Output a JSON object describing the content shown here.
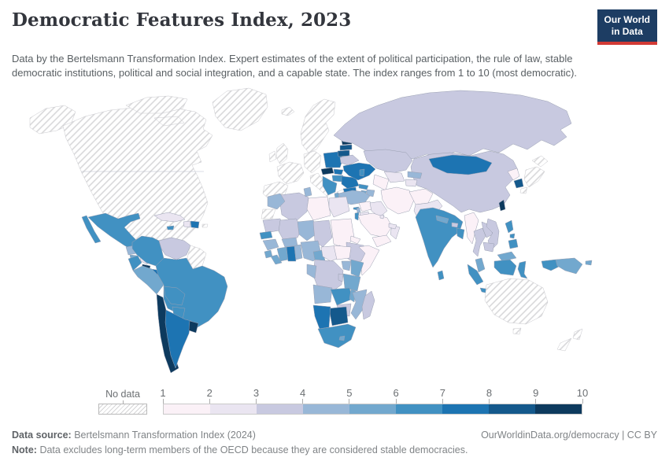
{
  "header": {
    "title": "Democratic Features Index, 2023",
    "subtitle": "Data by the Bertelsmann Transformation Index. Expert estimates of the extent of political participation, the rule of law, stable democratic institutions, political and social integration, and a capable state. The index ranges from 1 to 10 (most democratic).",
    "logo": {
      "line1": "Our World",
      "line2": "in Data",
      "bg_color": "#1d3d63",
      "accent_color": "#d23a35"
    }
  },
  "footer": {
    "source_label": "Data source:",
    "source": "Bertelsmann Transformation Index (2024)",
    "link": "OurWorldinData.org/democracy | CC BY",
    "note_label": "Note:",
    "note": "Data excludes long-term members of the OECD because they are considered stable democracies."
  },
  "chart_data": {
    "type": "choropleth-map",
    "title": "Democratic Features Index, 2023",
    "index_range": [
      1,
      10
    ],
    "legend": {
      "no_data_label": "No data",
      "ticks": [
        "1",
        "2",
        "3",
        "4",
        "5",
        "6",
        "7",
        "8",
        "9",
        "10"
      ],
      "bins": [
        {
          "range": "1-2",
          "color": "#fbf1f7"
        },
        {
          "range": "2-3",
          "color": "#eae5f1"
        },
        {
          "range": "3-4",
          "color": "#c8c9e0"
        },
        {
          "range": "4-5",
          "color": "#98b7d7"
        },
        {
          "range": "5-6",
          "color": "#72a8ce"
        },
        {
          "range": "6-7",
          "color": "#4191c2"
        },
        {
          "range": "7-8",
          "color": "#1d74b2"
        },
        {
          "range": "8-9",
          "color": "#14598c"
        },
        {
          "range": "9-10",
          "color": "#0d3a5e"
        }
      ],
      "no_data_style": {
        "fill": "#ffffff",
        "hatch_color": "#d6d6d8",
        "border": "#c9c9ce"
      }
    },
    "regions": [
      {
        "id": "alaska",
        "label": "United States (Alaska)",
        "bin": "no-data"
      },
      {
        "id": "canada-usa",
        "label": "Canada and United States",
        "bin": "no-data"
      },
      {
        "id": "arctic-islands",
        "label": "Canadian Arctic Islands",
        "bin": "no-data"
      },
      {
        "id": "greenland",
        "label": "Greenland",
        "bin": "no-data"
      },
      {
        "id": "mexico",
        "label": "Mexico",
        "bin": 6
      },
      {
        "id": "guatemala",
        "label": "Guatemala",
        "bin": 4
      },
      {
        "id": "honduras",
        "label": "Honduras",
        "bin": 3
      },
      {
        "id": "el-salvador",
        "label": "El Salvador",
        "bin": 5
      },
      {
        "id": "nicaragua",
        "label": "Nicaragua",
        "bin": 2
      },
      {
        "id": "costa-rica",
        "label": "Costa Rica",
        "bin": 9
      },
      {
        "id": "panama",
        "label": "Panama",
        "bin": 7
      },
      {
        "id": "cuba",
        "label": "Cuba",
        "bin": 2
      },
      {
        "id": "jamaica",
        "label": "Jamaica",
        "bin": 6
      },
      {
        "id": "haiti",
        "label": "Haiti",
        "bin": 2
      },
      {
        "id": "dominican-republic",
        "label": "Dominican Republic",
        "bin": 7
      },
      {
        "id": "puerto-rico",
        "label": "Puerto Rico",
        "bin": "no-data"
      },
      {
        "id": "trinidad",
        "label": "Trinidad and Tobago",
        "bin": 6
      },
      {
        "id": "colombia",
        "label": "Colombia",
        "bin": 6
      },
      {
        "id": "venezuela",
        "label": "Venezuela",
        "bin": 3
      },
      {
        "id": "guyanas",
        "label": "Guyana and Suriname",
        "bin": "no-data"
      },
      {
        "id": "ecuador",
        "label": "Ecuador",
        "bin": 6
      },
      {
        "id": "peru",
        "label": "Peru",
        "bin": 5
      },
      {
        "id": "brazil",
        "label": "Brazil",
        "bin": 6
      },
      {
        "id": "bolivia",
        "label": "Bolivia",
        "bin": 6
      },
      {
        "id": "paraguay",
        "label": "Paraguay",
        "bin": 6
      },
      {
        "id": "chile",
        "label": "Chile",
        "bin": 9
      },
      {
        "id": "argentina",
        "label": "Argentina",
        "bin": 7
      },
      {
        "id": "uruguay",
        "label": "Uruguay",
        "bin": 9
      },
      {
        "id": "iceland",
        "label": "Iceland",
        "bin": "no-data"
      },
      {
        "id": "uk",
        "label": "United Kingdom",
        "bin": "no-data"
      },
      {
        "id": "ireland",
        "label": "Ireland",
        "bin": "no-data"
      },
      {
        "id": "scandinavia",
        "label": "Norway, Sweden and Finland",
        "bin": "no-data"
      },
      {
        "id": "denmark",
        "label": "Denmark",
        "bin": "no-data"
      },
      {
        "id": "france",
        "label": "France",
        "bin": "no-data"
      },
      {
        "id": "iberia",
        "label": "Spain and Portugal",
        "bin": "no-data"
      },
      {
        "id": "central-europe",
        "label": "Germany, Austria and Switzerland",
        "bin": "no-data"
      },
      {
        "id": "italy",
        "label": "Italy",
        "bin": "no-data"
      },
      {
        "id": "greece",
        "label": "Greece",
        "bin": "no-data"
      },
      {
        "id": "estonia",
        "label": "Estonia",
        "bin": 9
      },
      {
        "id": "latvia",
        "label": "Latvia",
        "bin": 8
      },
      {
        "id": "lithuania",
        "label": "Lithuania",
        "bin": 8
      },
      {
        "id": "poland",
        "label": "Poland",
        "bin": 7
      },
      {
        "id": "czechia",
        "label": "Czechia",
        "bin": 9
      },
      {
        "id": "slovakia",
        "label": "Slovakia",
        "bin": 7
      },
      {
        "id": "hungary",
        "label": "Hungary",
        "bin": 6
      },
      {
        "id": "western-balkans",
        "label": "Western Balkans",
        "bin": 6
      },
      {
        "id": "albania",
        "label": "Albania",
        "bin": 5
      },
      {
        "id": "romania",
        "label": "Romania",
        "bin": 7
      },
      {
        "id": "bulgaria",
        "label": "Bulgaria",
        "bin": 7
      },
      {
        "id": "belarus",
        "label": "Belarus",
        "bin": 3
      },
      {
        "id": "ukraine",
        "label": "Ukraine",
        "bin": 7
      },
      {
        "id": "moldova",
        "label": "Moldova",
        "bin": 6
      },
      {
        "id": "russia",
        "label": "Russia",
        "bin": 3
      },
      {
        "id": "kazakhstan",
        "label": "Kazakhstan",
        "bin": 3
      },
      {
        "id": "china",
        "label": "China",
        "bin": 3
      },
      {
        "id": "mongolia",
        "label": "Mongolia",
        "bin": 7
      },
      {
        "id": "uzbekistan",
        "label": "Uzbekistan",
        "bin": 2
      },
      {
        "id": "turkmenistan",
        "label": "Turkmenistan",
        "bin": 1
      },
      {
        "id": "kyrgyzstan",
        "label": "Kyrgyzstan",
        "bin": 4
      },
      {
        "id": "tajikistan",
        "label": "Tajikistan",
        "bin": 2
      },
      {
        "id": "georgia",
        "label": "Georgia",
        "bin": 6
      },
      {
        "id": "armenia",
        "label": "Armenia",
        "bin": 5
      },
      {
        "id": "azerbaijan",
        "label": "Azerbaijan",
        "bin": 4
      },
      {
        "id": "turkey",
        "label": "Turkey",
        "bin": 4
      },
      {
        "id": "cyprus",
        "label": "Cyprus",
        "bin": 6
      },
      {
        "id": "syria",
        "label": "Syria",
        "bin": 1
      },
      {
        "id": "lebanon",
        "label": "Lebanon",
        "bin": 4
      },
      {
        "id": "israel",
        "label": "Israel",
        "bin": 6
      },
      {
        "id": "jordan",
        "label": "Jordan",
        "bin": 2
      },
      {
        "id": "iraq",
        "label": "Iraq",
        "bin": 2
      },
      {
        "id": "iran",
        "label": "Iran",
        "bin": 1
      },
      {
        "id": "saudi-arabia",
        "label": "Saudi Arabia",
        "bin": 1
      },
      {
        "id": "yemen",
        "label": "Yemen",
        "bin": 1
      },
      {
        "id": "oman",
        "label": "Oman",
        "bin": 2
      },
      {
        "id": "uae",
        "label": "United Arab Emirates",
        "bin": 2
      },
      {
        "id": "kuwait",
        "label": "Kuwait",
        "bin": 2
      },
      {
        "id": "afghanistan",
        "label": "Afghanistan",
        "bin": 1
      },
      {
        "id": "pakistan",
        "label": "Pakistan",
        "bin": 2
      },
      {
        "id": "india",
        "label": "India",
        "bin": 6
      },
      {
        "id": "nepal",
        "label": "Nepal",
        "bin": 5
      },
      {
        "id": "bhutan",
        "label": "Bhutan",
        "bin": 3
      },
      {
        "id": "bangladesh",
        "label": "Bangladesh",
        "bin": 6
      },
      {
        "id": "sri-lanka",
        "label": "Sri Lanka",
        "bin": 6
      },
      {
        "id": "north-korea",
        "label": "North Korea",
        "bin": 1
      },
      {
        "id": "south-korea",
        "label": "South Korea",
        "bin": 8
      },
      {
        "id": "japan",
        "label": "Japan",
        "bin": "no-data"
      },
      {
        "id": "taiwan",
        "label": "Taiwan",
        "bin": 9
      },
      {
        "id": "myanmar",
        "label": "Myanmar",
        "bin": 1
      },
      {
        "id": "thailand",
        "label": "Thailand",
        "bin": 3
      },
      {
        "id": "laos",
        "label": "Laos",
        "bin": 3
      },
      {
        "id": "vietnam",
        "label": "Vietnam",
        "bin": 3
      },
      {
        "id": "cambodia",
        "label": "Cambodia",
        "bin": 3
      },
      {
        "id": "malaysia",
        "label": "Malaysia",
        "bin": 5
      },
      {
        "id": "indonesia",
        "label": "Indonesia",
        "bin": 6
      },
      {
        "id": "papua-new-guinea",
        "label": "Papua New Guinea",
        "bin": 5
      },
      {
        "id": "philippines",
        "label": "Philippines",
        "bin": 6
      },
      {
        "id": "australia",
        "label": "Australia",
        "bin": "no-data"
      },
      {
        "id": "new-zealand",
        "label": "New Zealand",
        "bin": "no-data"
      },
      {
        "id": "morocco",
        "label": "Morocco",
        "bin": 4
      },
      {
        "id": "western-sahara",
        "label": "Western Sahara",
        "bin": "no-data"
      },
      {
        "id": "algeria",
        "label": "Algeria",
        "bin": 3
      },
      {
        "id": "tunisia",
        "label": "Tunisia",
        "bin": 4
      },
      {
        "id": "libya",
        "label": "Libya",
        "bin": 1
      },
      {
        "id": "egypt",
        "label": "Egypt",
        "bin": 2
      },
      {
        "id": "mauritania",
        "label": "Mauritania",
        "bin": 3
      },
      {
        "id": "mali",
        "label": "Mali",
        "bin": 3
      },
      {
        "id": "niger",
        "label": "Niger",
        "bin": 4
      },
      {
        "id": "chad",
        "label": "Chad",
        "bin": 3
      },
      {
        "id": "sudan",
        "label": "Sudan",
        "bin": 1
      },
      {
        "id": "eritrea",
        "label": "Eritrea",
        "bin": 1
      },
      {
        "id": "ethiopia",
        "label": "Ethiopia",
        "bin": 3
      },
      {
        "id": "somalia",
        "label": "Somalia",
        "bin": 1
      },
      {
        "id": "senegal",
        "label": "Senegal",
        "bin": 6
      },
      {
        "id": "guinea",
        "label": "Guinea",
        "bin": 4
      },
      {
        "id": "sierra-leone",
        "label": "Sierra Leone",
        "bin": 5
      },
      {
        "id": "liberia",
        "label": "Liberia",
        "bin": 5
      },
      {
        "id": "ivory-coast",
        "label": "Cote d'Ivoire",
        "bin": 5
      },
      {
        "id": "ghana",
        "label": "Ghana",
        "bin": 7
      },
      {
        "id": "togo-benin",
        "label": "Togo and Benin",
        "bin": 4
      },
      {
        "id": "burkina-faso",
        "label": "Burkina Faso",
        "bin": 4
      },
      {
        "id": "nigeria",
        "label": "Nigeria",
        "bin": 4
      },
      {
        "id": "cameroon",
        "label": "Cameroon",
        "bin": 5
      },
      {
        "id": "central-african-republic",
        "label": "Central African Republic",
        "bin": 2
      },
      {
        "id": "south-sudan",
        "label": "South Sudan",
        "bin": 1
      },
      {
        "id": "uganda",
        "label": "Uganda",
        "bin": 4
      },
      {
        "id": "kenya",
        "label": "Kenya",
        "bin": 5
      },
      {
        "id": "drc",
        "label": "Democratic Republic of Congo",
        "bin": 3
      },
      {
        "id": "gabon-congo",
        "label": "Gabon and Congo",
        "bin": 4
      },
      {
        "id": "tanzania",
        "label": "Tanzania",
        "bin": 5
      },
      {
        "id": "rwanda-burundi",
        "label": "Rwanda and Burundi",
        "bin": 3
      },
      {
        "id": "angola",
        "label": "Angola",
        "bin": 4
      },
      {
        "id": "zambia",
        "label": "Zambia",
        "bin": 6
      },
      {
        "id": "malawi",
        "label": "Malawi",
        "bin": 5
      },
      {
        "id": "mozambique",
        "label": "Mozambique",
        "bin": 4
      },
      {
        "id": "zimbabwe",
        "label": "Zimbabwe",
        "bin": 3
      },
      {
        "id": "botswana",
        "label": "Botswana",
        "bin": 8
      },
      {
        "id": "namibia",
        "label": "Namibia",
        "bin": 7
      },
      {
        "id": "south-africa",
        "label": "South Africa",
        "bin": 6
      },
      {
        "id": "lesotho",
        "label": "Lesotho",
        "bin": 5
      },
      {
        "id": "madagascar",
        "label": "Madagascar",
        "bin": 3
      }
    ]
  }
}
